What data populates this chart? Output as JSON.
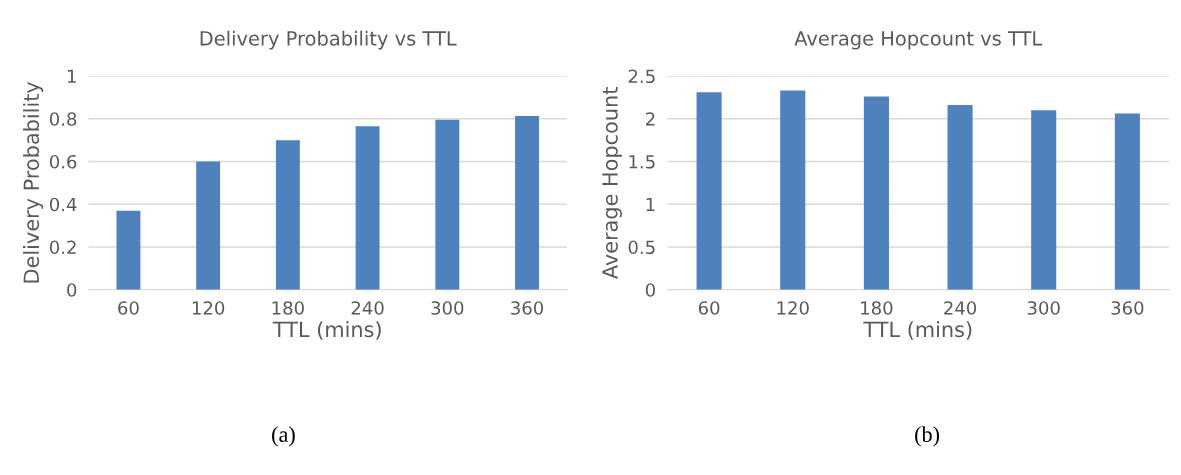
{
  "chart_data": [
    {
      "type": "bar",
      "title": "Delivery Probability vs TTL",
      "xlabel": "TTL (mins)",
      "ylabel": "Delivery Probability",
      "categories": [
        "60",
        "120",
        "180",
        "240",
        "300",
        "360"
      ],
      "values": [
        0.37,
        0.6,
        0.7,
        0.765,
        0.795,
        0.813
      ],
      "color": "#4f81bd",
      "ylim": [
        0,
        1
      ],
      "yticks": [
        0,
        0.2,
        0.4,
        0.6,
        0.8,
        1
      ],
      "grid": "y",
      "annotations": [
        "(a)"
      ]
    },
    {
      "type": "bar",
      "title": "Average Hopcount vs TTL",
      "xlabel": "TTL (mins)",
      "ylabel": "Average Hopcount",
      "categories": [
        "60",
        "120",
        "180",
        "240",
        "300",
        "360"
      ],
      "values": [
        2.31,
        2.33,
        2.26,
        2.16,
        2.1,
        2.06
      ],
      "color": "#4f81bd",
      "ylim": [
        0,
        2.5
      ],
      "yticks": [
        0,
        0.5,
        1,
        1.5,
        2,
        2.5
      ],
      "grid": "y",
      "annotations": [
        "(b)"
      ]
    }
  ]
}
